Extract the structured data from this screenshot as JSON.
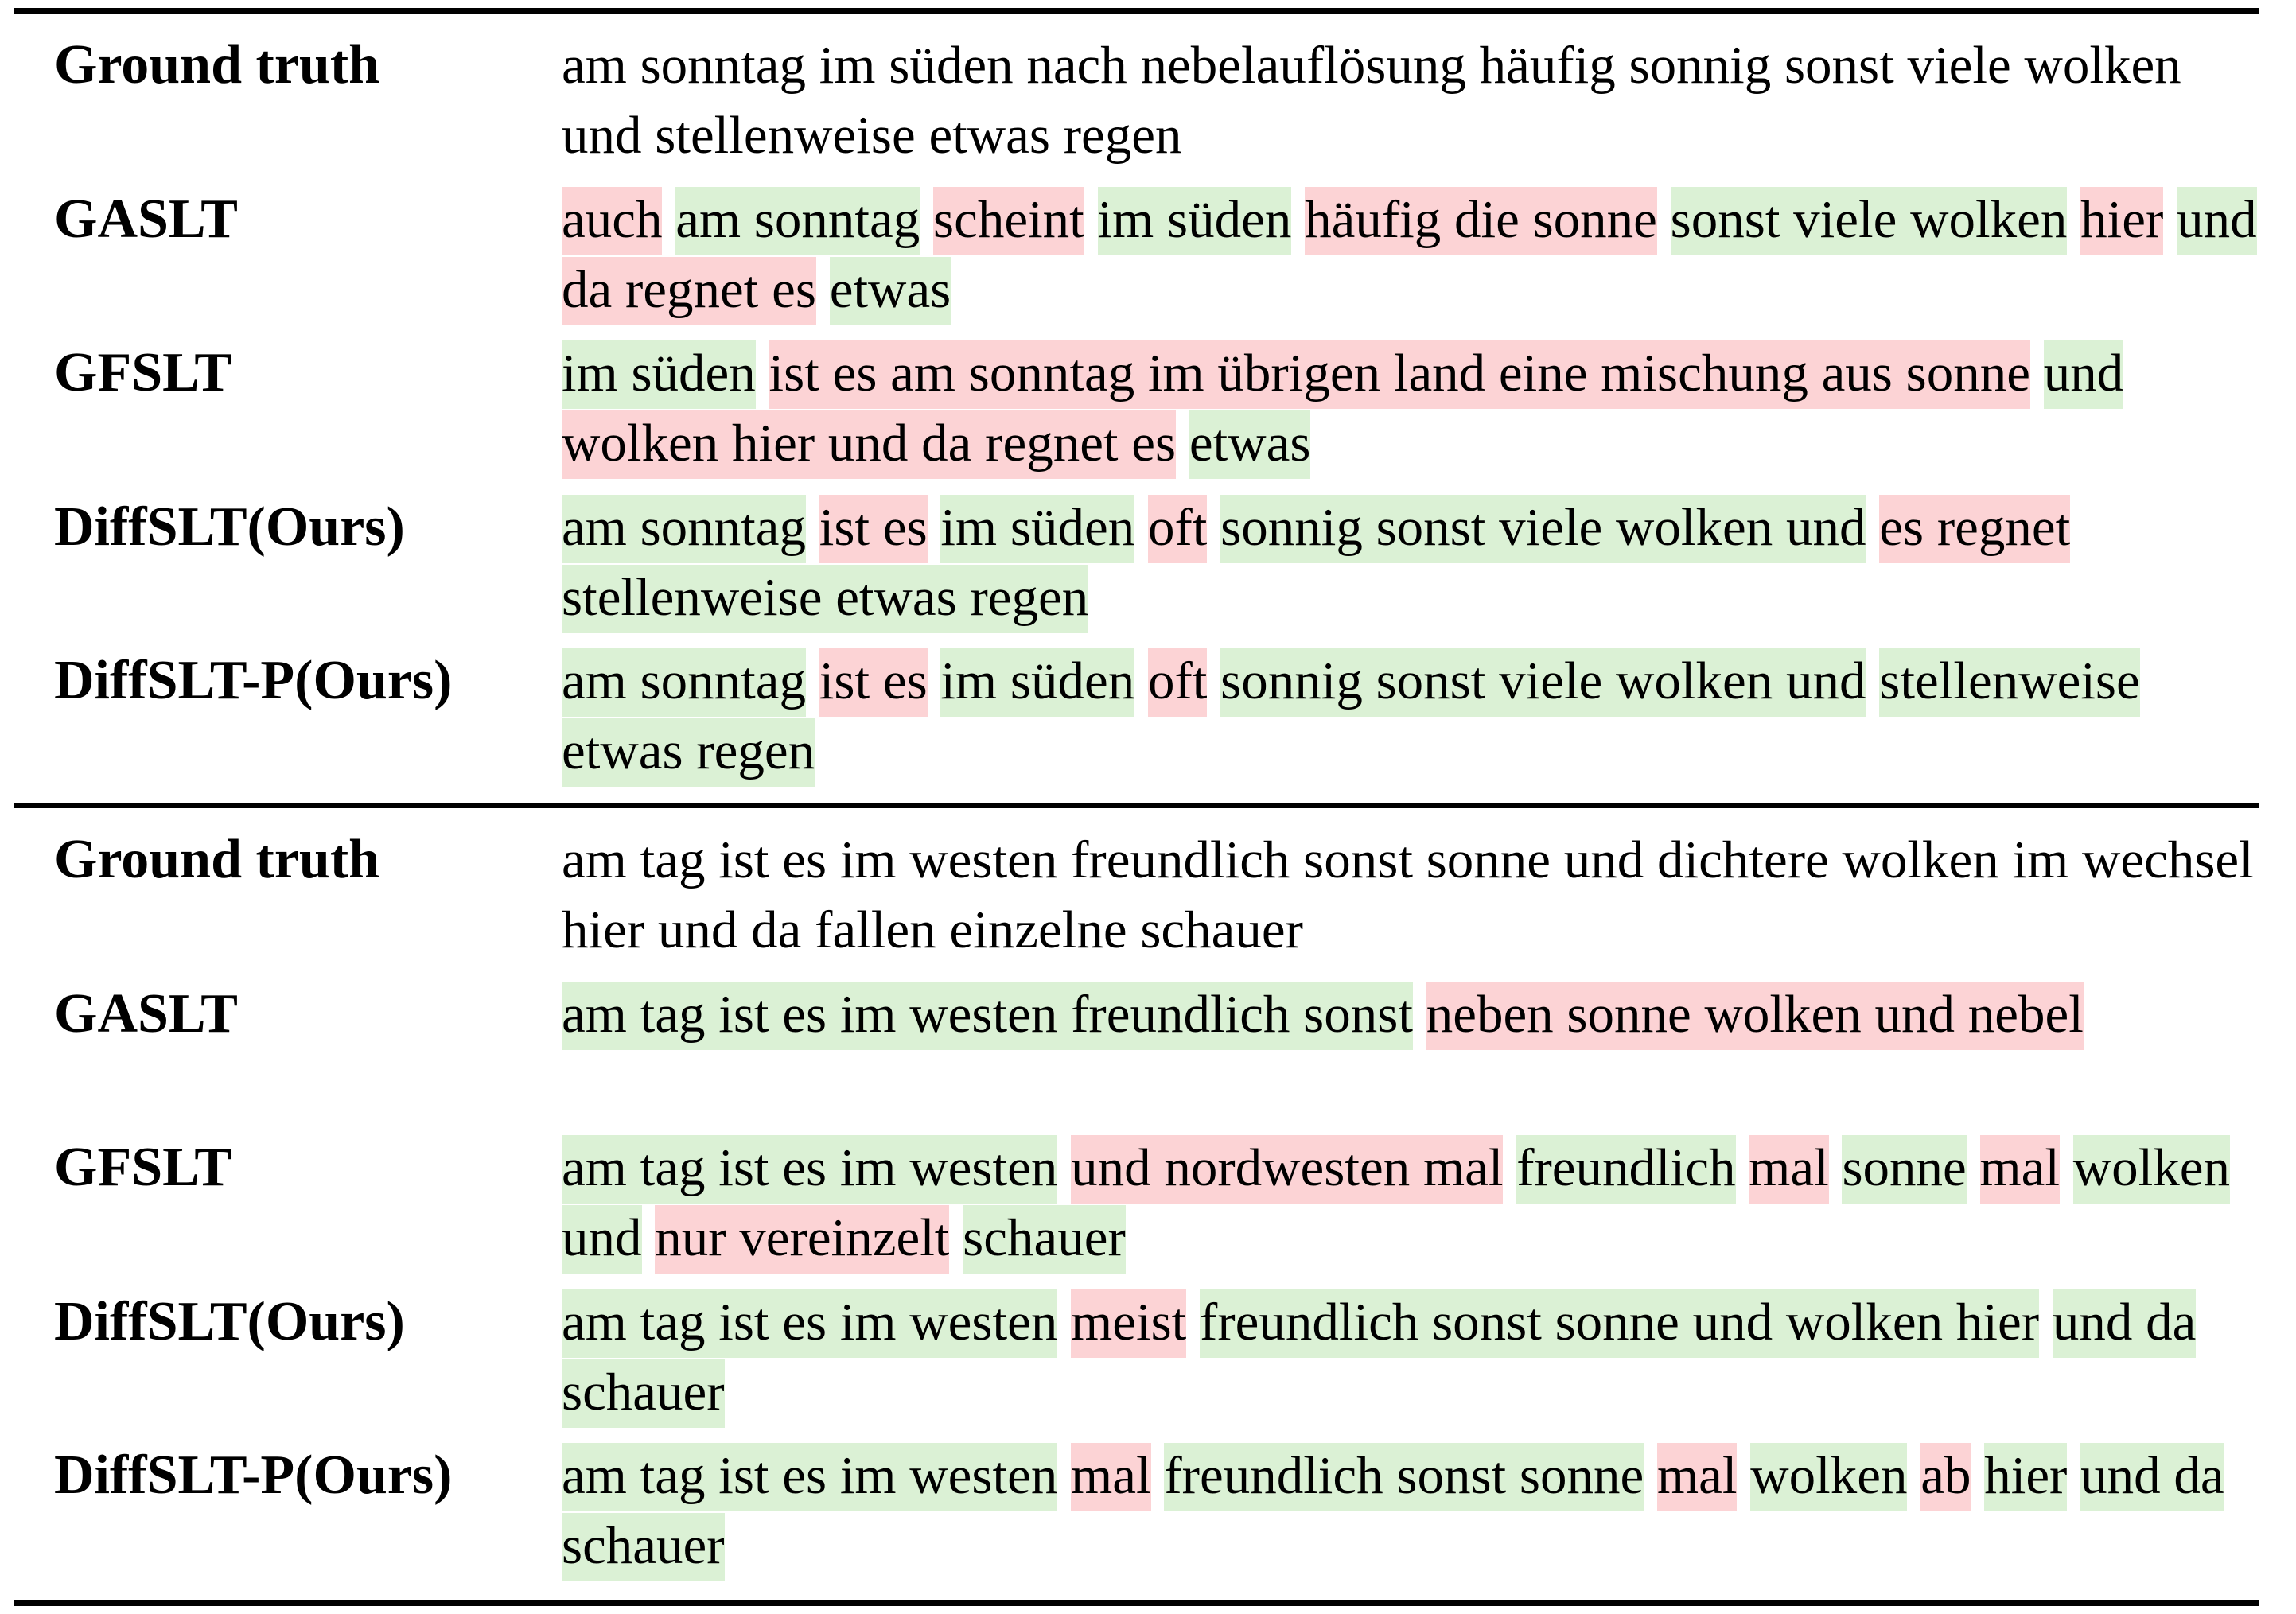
{
  "rows": [
    {
      "label": "Ground truth",
      "segments": [
        {
          "text": "am sonntag im süden nach nebelauflösung häufig sonnig sonst viele wolken und stellenweise etwas regen",
          "status": "plain"
        }
      ]
    },
    {
      "label": "GASLT",
      "segments": [
        {
          "text": "auch",
          "status": "err"
        },
        {
          "text": " ",
          "status": "plain"
        },
        {
          "text": "am sonntag",
          "status": "ok"
        },
        {
          "text": " ",
          "status": "plain"
        },
        {
          "text": "scheint",
          "status": "err"
        },
        {
          "text": " ",
          "status": "plain"
        },
        {
          "text": "im süden",
          "status": "ok"
        },
        {
          "text": " ",
          "status": "plain"
        },
        {
          "text": "häufig die sonne",
          "status": "err"
        },
        {
          "text": " ",
          "status": "plain"
        },
        {
          "text": "sonst viele wolken",
          "status": "ok"
        },
        {
          "text": " ",
          "status": "plain"
        },
        {
          "text": "hier",
          "status": "err"
        },
        {
          "text": " ",
          "status": "plain"
        },
        {
          "text": "und",
          "status": "ok"
        },
        {
          "text": " ",
          "status": "plain"
        },
        {
          "text": "da regnet es",
          "status": "err"
        },
        {
          "text": " ",
          "status": "plain"
        },
        {
          "text": "etwas",
          "status": "ok"
        }
      ]
    },
    {
      "label": "GFSLT",
      "segments": [
        {
          "text": "im süden",
          "status": "ok"
        },
        {
          "text": " ",
          "status": "plain"
        },
        {
          "text": "ist es am sonntag im übrigen land eine mischung aus sonne",
          "status": "err"
        },
        {
          "text": " ",
          "status": "plain"
        },
        {
          "text": "und",
          "status": "ok"
        },
        {
          "text": " ",
          "status": "plain"
        },
        {
          "text": "wolken hier und da regnet es",
          "status": "err"
        },
        {
          "text": " ",
          "status": "plain"
        },
        {
          "text": "etwas",
          "status": "ok"
        }
      ]
    },
    {
      "label": "DiffSLT(Ours)",
      "segments": [
        {
          "text": "am sonntag",
          "status": "ok"
        },
        {
          "text": " ",
          "status": "plain"
        },
        {
          "text": "ist es",
          "status": "err"
        },
        {
          "text": " ",
          "status": "plain"
        },
        {
          "text": "im süden",
          "status": "ok"
        },
        {
          "text": " ",
          "status": "plain"
        },
        {
          "text": "oft",
          "status": "err"
        },
        {
          "text": " ",
          "status": "plain"
        },
        {
          "text": "sonnig sonst viele wolken und",
          "status": "ok"
        },
        {
          "text": " ",
          "status": "plain"
        },
        {
          "text": "es regnet",
          "status": "err"
        },
        {
          "text": " ",
          "status": "plain"
        },
        {
          "text": "stellenweise etwas regen",
          "status": "ok"
        }
      ]
    },
    {
      "label": "DiffSLT-P(Ours)",
      "segments": [
        {
          "text": "am sonntag",
          "status": "ok"
        },
        {
          "text": " ",
          "status": "plain"
        },
        {
          "text": "ist es",
          "status": "err"
        },
        {
          "text": " ",
          "status": "plain"
        },
        {
          "text": "im süden",
          "status": "ok"
        },
        {
          "text": " ",
          "status": "plain"
        },
        {
          "text": "oft",
          "status": "err"
        },
        {
          "text": " ",
          "status": "plain"
        },
        {
          "text": "sonnig sonst viele wolken und",
          "status": "ok"
        },
        {
          "text": " ",
          "status": "plain"
        },
        {
          "text": "stellenweise etwas regen",
          "status": "ok"
        }
      ]
    },
    {
      "label": "Ground truth",
      "segments": [
        {
          "text": "am tag ist es im westen freundlich sonst sonne und dichtere wolken im wechsel hier und da fallen einzelne schauer",
          "status": "plain"
        }
      ]
    },
    {
      "label": "GASLT",
      "segments": [
        {
          "text": "am tag ist es im westen freundlich sonst",
          "status": "ok"
        },
        {
          "text": " ",
          "status": "plain"
        },
        {
          "text": "neben sonne wolken und nebel",
          "status": "err"
        }
      ]
    },
    {
      "label": "GFSLT",
      "segments": [
        {
          "text": "am tag ist es im westen",
          "status": "ok"
        },
        {
          "text": " ",
          "status": "plain"
        },
        {
          "text": "und nordwesten mal",
          "status": "err"
        },
        {
          "text": " ",
          "status": "plain"
        },
        {
          "text": "freundlich",
          "status": "ok"
        },
        {
          "text": " ",
          "status": "plain"
        },
        {
          "text": "mal",
          "status": "err"
        },
        {
          "text": " ",
          "status": "plain"
        },
        {
          "text": "sonne",
          "status": "ok"
        },
        {
          "text": " ",
          "status": "plain"
        },
        {
          "text": "mal",
          "status": "err"
        },
        {
          "text": " ",
          "status": "plain"
        },
        {
          "text": "wolken und",
          "status": "ok"
        },
        {
          "text": " ",
          "status": "plain"
        },
        {
          "text": "nur vereinzelt",
          "status": "err"
        },
        {
          "text": " ",
          "status": "plain"
        },
        {
          "text": "schauer",
          "status": "ok"
        }
      ]
    },
    {
      "label": "DiffSLT(Ours)",
      "segments": [
        {
          "text": "am tag ist es im westen",
          "status": "ok"
        },
        {
          "text": " ",
          "status": "plain"
        },
        {
          "text": "meist",
          "status": "err"
        },
        {
          "text": " ",
          "status": "plain"
        },
        {
          "text": "freundlich sonst sonne und wolken hier",
          "status": "ok"
        },
        {
          "text": " ",
          "status": "plain"
        },
        {
          "text": "und da schauer",
          "status": "ok"
        }
      ]
    },
    {
      "label": "DiffSLT-P(Ours)",
      "segments": [
        {
          "text": "am tag ist es im westen",
          "status": "ok"
        },
        {
          "text": " ",
          "status": "plain"
        },
        {
          "text": "mal",
          "status": "err"
        },
        {
          "text": " ",
          "status": "plain"
        },
        {
          "text": "freundlich sonst sonne",
          "status": "ok"
        },
        {
          "text": " ",
          "status": "plain"
        },
        {
          "text": "mal",
          "status": "err"
        },
        {
          "text": " ",
          "status": "plain"
        },
        {
          "text": "wolken",
          "status": "ok"
        },
        {
          "text": " ",
          "status": "plain"
        },
        {
          "text": "ab",
          "status": "err"
        },
        {
          "text": " ",
          "status": "plain"
        },
        {
          "text": "hier",
          "status": "ok"
        },
        {
          "text": " ",
          "status": "plain"
        },
        {
          "text": "und da schauer",
          "status": "ok"
        }
      ]
    }
  ],
  "colors": {
    "match_highlight": "#dbf1d5",
    "error_highlight": "#fcd3d5"
  }
}
